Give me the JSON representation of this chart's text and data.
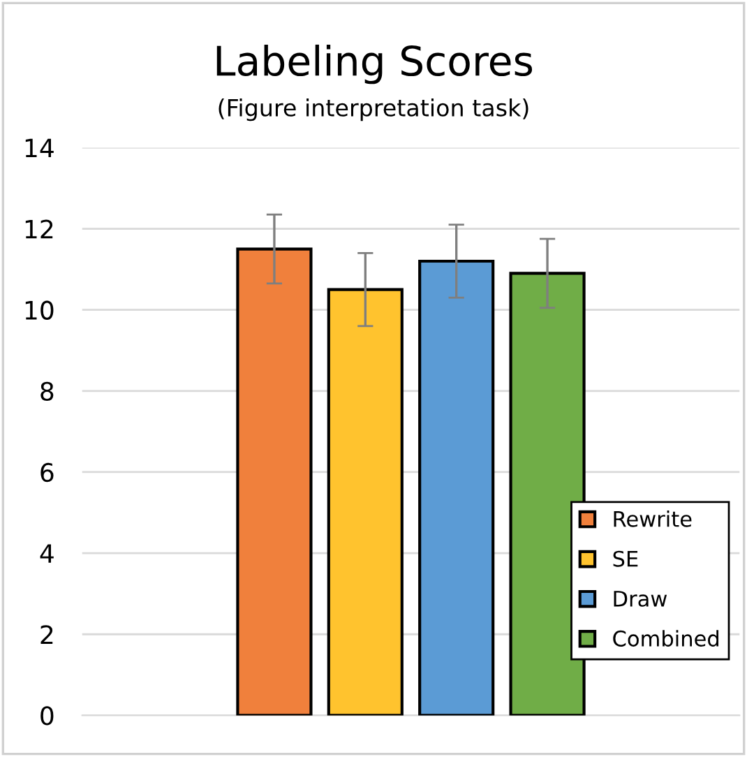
{
  "chart_data": {
    "type": "bar",
    "title": "Labeling Scores",
    "subtitle": "(Figure interpretation task)",
    "categories": [
      null
    ],
    "series": [
      {
        "name": "Rewrite",
        "color": "#f0803c",
        "values": [
          11.5
        ],
        "errors": [
          0.85
        ]
      },
      {
        "name": "SE",
        "color": "#ffc32e",
        "values": [
          10.5
        ],
        "errors": [
          0.9
        ]
      },
      {
        "name": "Draw",
        "color": "#5b9bd5",
        "values": [
          11.2
        ],
        "errors": [
          0.9
        ]
      },
      {
        "name": "Combined",
        "color": "#70ad47",
        "values": [
          10.9
        ],
        "errors": [
          0.85
        ]
      }
    ],
    "ylim": [
      0,
      14
    ],
    "yticks": [
      0,
      2,
      4,
      6,
      8,
      10,
      12,
      14
    ],
    "grid": "y",
    "legend": "bottom right"
  }
}
